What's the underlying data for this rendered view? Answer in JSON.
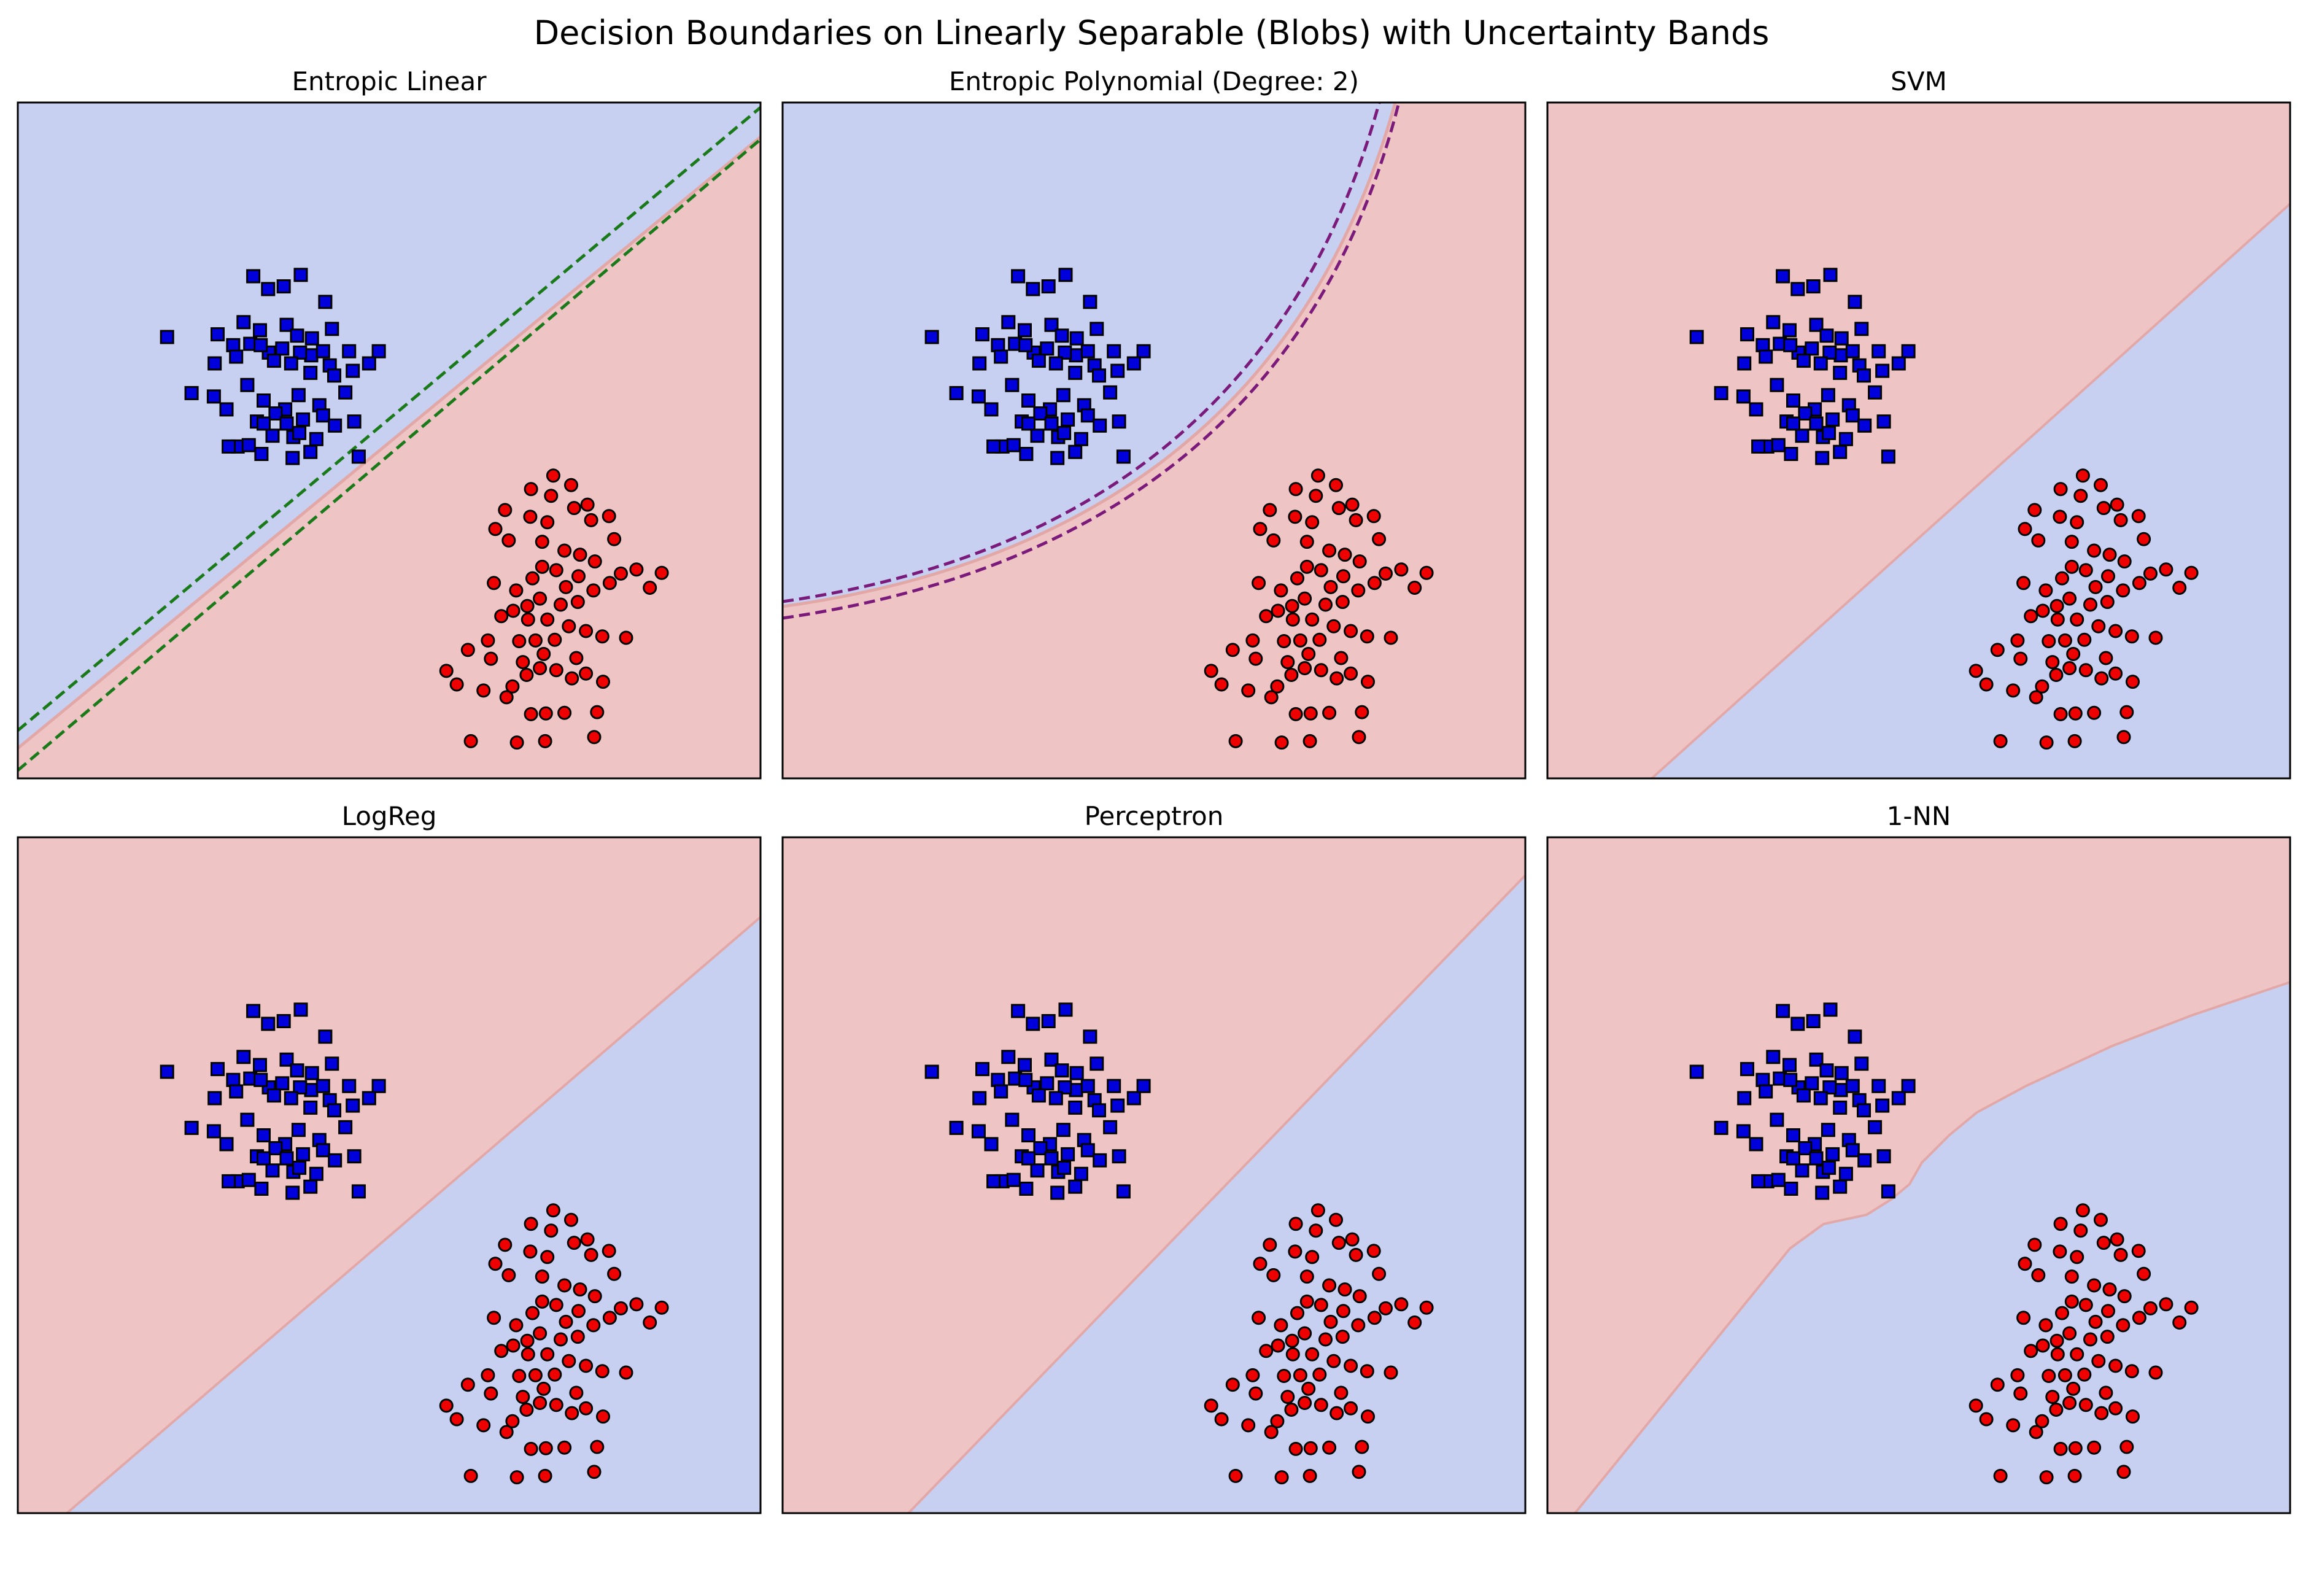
{
  "figure_title": "Decision Boundaries on Linearly Separable (Blobs) with Uncertainty Bands",
  "colors": {
    "class_blue_region": "#c8d0f2",
    "class_red_region": "#efc4c4",
    "blue_marker": "#0000dd",
    "red_marker": "#ee0000",
    "marker_edge": "#000000",
    "band_linear": "#1a7a1a",
    "band_poly": "#7a1a7a"
  },
  "chart_data": [
    {
      "type": "scatter",
      "panel": "Entropic Linear",
      "title": "Entropic Linear",
      "axes_ticks": "hidden",
      "regions": {
        "upper_left": "blue",
        "lower_right": "red"
      },
      "boundary": "linear",
      "uncertainty_band": true,
      "band_color": "#1a7a1a"
    },
    {
      "type": "scatter",
      "panel": "Entropic Polynomial",
      "title": "Entropic Polynomial (Degree: 2)",
      "axes_ticks": "hidden",
      "regions": {
        "upper_left": "blue",
        "lower_right": "red"
      },
      "boundary": "quadratic",
      "uncertainty_band": true,
      "band_color": "#7a1a7a"
    },
    {
      "type": "scatter",
      "panel": "SVM",
      "title": "SVM",
      "axes_ticks": "hidden",
      "regions": {
        "upper_left": "red",
        "lower_right": "blue"
      },
      "boundary": "linear",
      "uncertainty_band": false
    },
    {
      "type": "scatter",
      "panel": "LogReg",
      "title": "LogReg",
      "axes_ticks": "hidden",
      "regions": {
        "upper_left": "red",
        "lower_right": "blue"
      },
      "boundary": "linear",
      "uncertainty_band": false
    },
    {
      "type": "scatter",
      "panel": "Perceptron",
      "title": "Perceptron",
      "axes_ticks": "hidden",
      "regions": {
        "upper_left": "red",
        "lower_right": "blue"
      },
      "boundary": "linear",
      "uncertainty_band": false
    },
    {
      "type": "scatter",
      "panel": "1-NN",
      "title": "1-NN",
      "axes_ticks": "hidden",
      "regions": {
        "upper_left": "red",
        "lower_right": "blue"
      },
      "boundary": "piecewise",
      "uncertainty_band": false
    }
  ],
  "points": {
    "blue_squares": [
      [
        0.317,
        0.257
      ],
      [
        0.337,
        0.276
      ],
      [
        0.358,
        0.272
      ],
      [
        0.414,
        0.295
      ],
      [
        0.381,
        0.255
      ],
      [
        0.269,
        0.343
      ],
      [
        0.201,
        0.347
      ],
      [
        0.304,
        0.325
      ],
      [
        0.326,
        0.337
      ],
      [
        0.362,
        0.329
      ],
      [
        0.376,
        0.345
      ],
      [
        0.396,
        0.349
      ],
      [
        0.423,
        0.335
      ],
      [
        0.446,
        0.368
      ],
      [
        0.486,
        0.368
      ],
      [
        0.473,
        0.386
      ],
      [
        0.451,
        0.397
      ],
      [
        0.42,
        0.389
      ],
      [
        0.395,
        0.374
      ],
      [
        0.38,
        0.37
      ],
      [
        0.356,
        0.364
      ],
      [
        0.338,
        0.37
      ],
      [
        0.313,
        0.357
      ],
      [
        0.29,
        0.359
      ],
      [
        0.265,
        0.386
      ],
      [
        0.294,
        0.376
      ],
      [
        0.327,
        0.359
      ],
      [
        0.345,
        0.382
      ],
      [
        0.368,
        0.386
      ],
      [
        0.394,
        0.4
      ],
      [
        0.411,
        0.368
      ],
      [
        0.426,
        0.404
      ],
      [
        0.441,
        0.429
      ],
      [
        0.406,
        0.448
      ],
      [
        0.378,
        0.433
      ],
      [
        0.36,
        0.454
      ],
      [
        0.347,
        0.46
      ],
      [
        0.331,
        0.441
      ],
      [
        0.309,
        0.418
      ],
      [
        0.281,
        0.454
      ],
      [
        0.264,
        0.435
      ],
      [
        0.234,
        0.43
      ],
      [
        0.322,
        0.472
      ],
      [
        0.362,
        0.475
      ],
      [
        0.384,
        0.469
      ],
      [
        0.411,
        0.463
      ],
      [
        0.427,
        0.478
      ],
      [
        0.453,
        0.472
      ],
      [
        0.296,
        0.509
      ],
      [
        0.284,
        0.509
      ],
      [
        0.311,
        0.507
      ],
      [
        0.343,
        0.493
      ],
      [
        0.371,
        0.495
      ],
      [
        0.402,
        0.498
      ],
      [
        0.459,
        0.524
      ],
      [
        0.394,
        0.517
      ],
      [
        0.328,
        0.52
      ],
      [
        0.379,
        0.489
      ],
      [
        0.331,
        0.475
      ],
      [
        0.37,
        0.526
      ]
    ],
    "red_circles": [
      [
        0.721,
        0.552
      ],
      [
        0.691,
        0.572
      ],
      [
        0.718,
        0.582
      ],
      [
        0.745,
        0.566
      ],
      [
        0.749,
        0.6
      ],
      [
        0.767,
        0.595
      ],
      [
        0.713,
        0.621
      ],
      [
        0.69,
        0.613
      ],
      [
        0.656,
        0.603
      ],
      [
        0.643,
        0.631
      ],
      [
        0.661,
        0.648
      ],
      [
        0.706,
        0.65
      ],
      [
        0.736,
        0.663
      ],
      [
        0.757,
        0.669
      ],
      [
        0.772,
        0.618
      ],
      [
        0.796,
        0.612
      ],
      [
        0.803,
        0.646
      ],
      [
        0.777,
        0.679
      ],
      [
        0.812,
        0.697
      ],
      [
        0.833,
        0.691
      ],
      [
        0.867,
        0.696
      ],
      [
        0.851,
        0.718
      ],
      [
        0.797,
        0.711
      ],
      [
        0.775,
        0.722
      ],
      [
        0.754,
        0.739
      ],
      [
        0.731,
        0.743
      ],
      [
        0.703,
        0.734
      ],
      [
        0.686,
        0.745
      ],
      [
        0.667,
        0.752
      ],
      [
        0.651,
        0.76
      ],
      [
        0.687,
        0.765
      ],
      [
        0.713,
        0.765
      ],
      [
        0.742,
        0.775
      ],
      [
        0.765,
        0.782
      ],
      [
        0.787,
        0.79
      ],
      [
        0.819,
        0.792
      ],
      [
        0.723,
        0.795
      ],
      [
        0.697,
        0.796
      ],
      [
        0.675,
        0.797
      ],
      [
        0.633,
        0.796
      ],
      [
        0.606,
        0.81
      ],
      [
        0.637,
        0.823
      ],
      [
        0.577,
        0.841
      ],
      [
        0.591,
        0.861
      ],
      [
        0.627,
        0.87
      ],
      [
        0.666,
        0.864
      ],
      [
        0.685,
        0.847
      ],
      [
        0.703,
        0.837
      ],
      [
        0.725,
        0.84
      ],
      [
        0.746,
        0.852
      ],
      [
        0.765,
        0.845
      ],
      [
        0.788,
        0.857
      ],
      [
        0.752,
        0.822
      ],
      [
        0.708,
        0.816
      ],
      [
        0.68,
        0.828
      ],
      [
        0.755,
        0.701
      ],
      [
        0.693,
        0.704
      ],
      [
        0.725,
        0.692
      ],
      [
        0.641,
        0.711
      ],
      [
        0.706,
        0.687
      ],
      [
        0.738,
        0.717
      ],
      [
        0.671,
        0.722
      ],
      [
        0.691,
        0.905
      ],
      [
        0.711,
        0.904
      ],
      [
        0.736,
        0.903
      ],
      [
        0.71,
        0.945
      ],
      [
        0.78,
        0.902
      ],
      [
        0.776,
        0.939
      ],
      [
        0.61,
        0.945
      ],
      [
        0.672,
        0.947
      ],
      [
        0.658,
        0.88
      ]
    ]
  }
}
